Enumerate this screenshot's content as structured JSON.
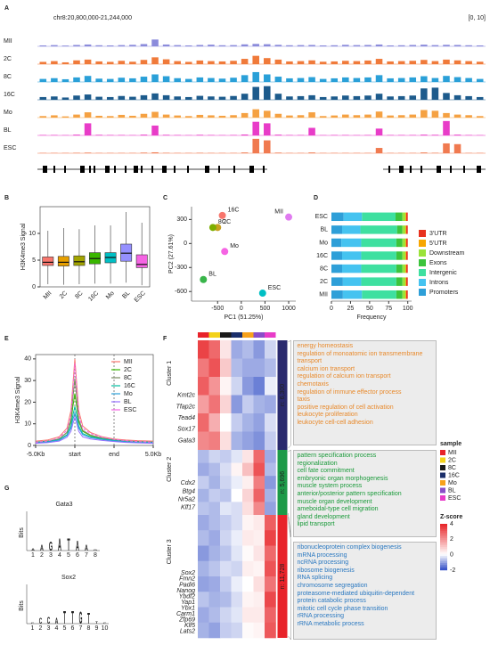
{
  "panel_labels": [
    "A",
    "B",
    "C",
    "D",
    "E",
    "F",
    "G"
  ],
  "tracks": {
    "region": "chr8:20,800,000-21,244,000",
    "range": "[0, 10]",
    "ylim": [
      0,
      10
    ],
    "items": [
      {
        "name": "MII",
        "color": "#8b8bdb",
        "values": [
          0.6,
          0.8,
          0.5,
          0.9,
          1.2,
          0.7,
          0.6,
          0.8,
          1.0,
          1.5,
          4.5,
          1.2,
          0.8,
          0.6,
          0.9,
          1.1,
          0.7,
          0.8,
          1.3,
          1.6,
          1.4,
          1.0,
          0.7,
          0.8,
          0.9,
          0.6,
          0.7,
          1.0,
          0.8,
          0.9,
          1.2,
          0.6,
          0.7,
          0.9,
          1.1,
          0.8,
          1.0,
          0.9,
          0.7,
          0.6
        ]
      },
      {
        "name": "2C",
        "color": "#f07a3a",
        "values": [
          1.5,
          2.0,
          1.2,
          2.5,
          3.0,
          1.8,
          1.5,
          2.2,
          1.6,
          2.8,
          4.5,
          3.2,
          2.0,
          1.5,
          2.4,
          2.0,
          1.8,
          2.2,
          3.5,
          5.5,
          4.0,
          3.0,
          1.8,
          2.0,
          2.5,
          1.6,
          1.8,
          2.2,
          2.0,
          2.4,
          3.5,
          1.8,
          2.0,
          2.2,
          2.8,
          2.0,
          3.0,
          2.5,
          2.0,
          1.6
        ]
      },
      {
        "name": "8C",
        "color": "#2aa0d8",
        "values": [
          2.0,
          2.5,
          1.8,
          3.0,
          4.0,
          2.2,
          2.0,
          2.8,
          2.4,
          3.5,
          5.0,
          3.8,
          2.5,
          2.0,
          3.0,
          2.6,
          2.2,
          2.8,
          4.5,
          6.5,
          5.0,
          3.5,
          2.4,
          2.6,
          3.2,
          2.0,
          2.4,
          3.0,
          2.6,
          3.0,
          4.5,
          2.4,
          2.6,
          3.0,
          3.8,
          2.6,
          4.0,
          3.2,
          2.6,
          2.0
        ]
      },
      {
        "name": "16C",
        "color": "#1d5b8c",
        "values": [
          1.8,
          2.2,
          1.5,
          2.8,
          3.5,
          2.0,
          1.8,
          2.5,
          2.0,
          3.0,
          4.2,
          3.0,
          2.2,
          1.8,
          2.6,
          2.2,
          2.0,
          2.5,
          4.0,
          8.5,
          9.0,
          4.0,
          2.2,
          2.4,
          3.0,
          1.8,
          2.2,
          2.8,
          2.4,
          2.8,
          4.0,
          2.2,
          2.4,
          2.8,
          7.5,
          8.0,
          4.5,
          3.0,
          2.4,
          1.8
        ]
      },
      {
        "name": "Mo",
        "color": "#f5a142",
        "values": [
          1.0,
          1.5,
          0.8,
          2.0,
          3.5,
          1.2,
          1.0,
          1.8,
          1.2,
          2.5,
          3.8,
          2.0,
          1.4,
          1.0,
          1.8,
          1.5,
          1.2,
          1.6,
          3.0,
          5.5,
          4.5,
          2.5,
          1.4,
          1.6,
          3.5,
          1.0,
          1.4,
          2.0,
          1.6,
          2.0,
          4.0,
          1.4,
          1.6,
          2.0,
          5.0,
          4.5,
          3.0,
          2.0,
          1.6,
          1.0
        ]
      },
      {
        "name": "BL",
        "color": "#e83cc8",
        "values": [
          0.3,
          0.3,
          0.2,
          0.5,
          8.0,
          0.4,
          0.3,
          0.3,
          0.2,
          0.5,
          6.5,
          0.4,
          0.3,
          0.2,
          0.4,
          0.3,
          0.2,
          0.3,
          0.6,
          9.0,
          8.0,
          0.5,
          0.3,
          0.3,
          5.0,
          0.2,
          0.3,
          0.3,
          0.2,
          0.3,
          4.5,
          0.3,
          0.3,
          0.3,
          0.5,
          0.4,
          9.5,
          0.5,
          0.3,
          0.2
        ]
      },
      {
        "name": "ESC",
        "color": "#f07a50",
        "values": [
          0.2,
          0.2,
          0.2,
          0.3,
          0.4,
          0.2,
          0.2,
          0.2,
          0.2,
          0.4,
          0.6,
          0.3,
          0.2,
          0.2,
          0.3,
          0.2,
          0.2,
          0.2,
          0.5,
          9.5,
          8.5,
          0.4,
          0.2,
          0.2,
          0.5,
          0.2,
          0.2,
          0.2,
          0.2,
          0.2,
          3.5,
          0.2,
          0.2,
          0.2,
          0.5,
          0.3,
          6.5,
          6.0,
          0.2,
          0.2
        ]
      }
    ]
  },
  "chart_data": [
    {
      "type": "box",
      "ylabel": "H3K4me3 Signal",
      "categories": [
        "MII",
        "2C",
        "8C",
        "16C",
        "Mo",
        "BL",
        "ESC"
      ],
      "colors": [
        "#f8766d",
        "#e69f00",
        "#a3a500",
        "#39b600",
        "#00bfc4",
        "#9590ff",
        "#f564e3"
      ],
      "min": [
        0.5,
        0.4,
        0.5,
        0.6,
        0.6,
        0.8,
        0.3
      ],
      "q1": [
        4.0,
        3.9,
        4.0,
        4.3,
        4.5,
        4.8,
        3.6
      ],
      "median": [
        4.6,
        4.6,
        4.7,
        5.3,
        5.5,
        6.3,
        4.2
      ],
      "q3": [
        5.6,
        5.7,
        5.8,
        6.4,
        6.4,
        8.0,
        6.0
      ],
      "max": [
        10.5,
        11,
        10.8,
        11.5,
        11.5,
        14,
        12
      ],
      "ylim": [
        0,
        15
      ],
      "yticks": [
        0,
        5,
        10
      ]
    },
    {
      "type": "scatter",
      "xlabel": "PC1 (51.25%)",
      "ylabel": "PC2 (27.61%)",
      "categories": [
        "MII",
        "16C",
        "2C",
        "8C",
        "Mo",
        "BL",
        "ESC"
      ],
      "x": [
        1000,
        -400,
        -500,
        -600,
        -350,
        -800,
        450
      ],
      "y": [
        330,
        350,
        200,
        200,
        -100,
        -450,
        -620
      ],
      "colors": [
        "#e07bf0",
        "#f8766d",
        "#c8a020",
        "#7cae00",
        "#f564e3",
        "#39b54a",
        "#00bfc4"
      ],
      "xlim": [
        -1050,
        1150
      ],
      "ylim": [
        -720,
        460
      ],
      "xticks": [
        -500,
        0,
        500,
        1000
      ],
      "yticks": [
        -600,
        -300,
        0,
        300
      ]
    },
    {
      "type": "bar",
      "stacked": true,
      "orientation": "horizontal",
      "xlabel": "Frequency",
      "categories": [
        "MII",
        "2C",
        "8C",
        "16C",
        "Mo",
        "BL",
        "ESC"
      ],
      "series": [
        {
          "name": "Promoters",
          "color": "#2e9fd8",
          "values": [
            15,
            15,
            14,
            14,
            13,
            14,
            16
          ]
        },
        {
          "name": "Introns",
          "color": "#45c3f0",
          "values": [
            25,
            24,
            25,
            25,
            26,
            24,
            24
          ]
        },
        {
          "name": "Intergenic",
          "color": "#3ee0a0",
          "values": [
            45,
            46,
            46,
            46,
            46,
            48,
            44
          ]
        },
        {
          "name": "Exons",
          "color": "#3cc43c",
          "values": [
            8,
            8,
            8,
            8,
            8,
            7,
            9
          ]
        },
        {
          "name": "Downstream",
          "color": "#9be33a",
          "values": [
            4,
            4,
            4,
            4,
            4,
            4,
            4
          ]
        },
        {
          "name": "5'UTR",
          "color": "#f7a600",
          "values": [
            1,
            1,
            1,
            1,
            1,
            1,
            1
          ]
        },
        {
          "name": "3'UTR",
          "color": "#e8321e",
          "values": [
            2,
            2,
            2,
            2,
            2,
            2,
            2
          ]
        }
      ],
      "xlim": [
        0,
        105
      ],
      "xticks": [
        0,
        25,
        50,
        75,
        100
      ]
    },
    {
      "type": "line",
      "ylabel": "H3K4me3 Signal",
      "x": [
        0,
        0.3,
        0.6,
        0.8,
        0.9,
        0.95,
        1,
        1.05,
        1.1,
        1.2,
        1.4,
        1.7,
        2,
        2.3,
        2.6,
        3
      ],
      "series": [
        {
          "name": "MII",
          "color": "#f8766d",
          "values": [
            2,
            2.5,
            4,
            8,
            16,
            28,
            40,
            28,
            16,
            9,
            6,
            4,
            3,
            2.5,
            2.2,
            2
          ]
        },
        {
          "name": "2C",
          "color": "#39b600",
          "values": [
            1.5,
            2,
            3,
            6,
            11,
            18,
            24,
            18,
            11,
            6.5,
            4.5,
            3.2,
            2.5,
            2,
            1.8,
            1.5
          ]
        },
        {
          "name": "8C",
          "color": "#7a8a60",
          "values": [
            1.5,
            2,
            3,
            6,
            12,
            22,
            31,
            22,
            12,
            7,
            4.8,
            3.4,
            2.6,
            2,
            1.8,
            1.5
          ]
        },
        {
          "name": "16C",
          "color": "#00bfa0",
          "values": [
            1.5,
            1.8,
            2.6,
            5,
            9,
            14,
            18,
            14,
            9,
            5.5,
            4,
            3,
            2.3,
            1.8,
            1.6,
            1.5
          ]
        },
        {
          "name": "Mo",
          "color": "#2aa0d8",
          "values": [
            1.2,
            1.6,
            2.4,
            4.5,
            8,
            12,
            15,
            12,
            8,
            5,
            3.6,
            2.7,
            2.1,
            1.7,
            1.4,
            1.2
          ]
        },
        {
          "name": "BL",
          "color": "#9570ff",
          "values": [
            1,
            1.3,
            2,
            3.8,
            6.5,
            10,
            13,
            10,
            6.5,
            4,
            3,
            2.3,
            1.8,
            1.4,
            1.2,
            1
          ]
        },
        {
          "name": "ESC",
          "color": "#f564e3",
          "line_style": "dashed",
          "values": [
            1.5,
            2,
            3.5,
            7,
            14,
            26,
            38,
            26,
            14,
            8,
            5.5,
            3.8,
            2.8,
            2.2,
            1.8,
            1.5
          ]
        }
      ],
      "xlim": [
        0,
        3
      ],
      "ylim": [
        0,
        42
      ],
      "xticks": [
        {
          "value": 0,
          "label": "-5.0Kb"
        },
        {
          "value": 1,
          "label": "start"
        },
        {
          "value": 2,
          "label": "end"
        },
        {
          "value": 3,
          "label": "5.0Kb"
        }
      ],
      "yticks": [
        0,
        10,
        20,
        30,
        40
      ],
      "marker_lines": [
        1,
        2
      ]
    }
  ],
  "heatmap": {
    "samples": [
      "MII",
      "2C",
      "8C",
      "16C",
      "Mo",
      "BL",
      "ESC"
    ],
    "sample_colors": [
      "#e8232a",
      "#f3d21a",
      "#1b1b1b",
      "#1b2f6b",
      "#f7a21b",
      "#8a4ec8",
      "#e83cc8"
    ],
    "sample_title": "sample",
    "zscore_title": "Z-score",
    "zlim": [
      -2,
      4
    ],
    "zticks": [
      4,
      2,
      0,
      -2
    ],
    "clusters": [
      {
        "name": "Cluster 1",
        "count": "n: 6,300",
        "color": "#2a2a6e",
        "text_color": "#e8892b",
        "gene_color": "#1f3a7a",
        "genes": [
          "Kmt2c",
          "Tfap2c",
          "Tead4",
          "Sox17",
          "Gata3"
        ],
        "terms": [
          "energy homeostasis",
          "regulation of monoatomic ion transmembrane transport",
          "calcium ion transport",
          "regulation of calcium ion transport",
          "chemotaxis",
          "regulation of immune effector process",
          "taxis",
          "positive regulation of cell activation",
          "leukocyte proliferation",
          "leukocyte cell-cell  adhesion"
        ],
        "rows": [
          [
            3.5,
            2.8,
            0.5,
            -1.0,
            -0.8,
            -1.2,
            -0.5
          ],
          [
            2.5,
            3.2,
            1.0,
            -0.8,
            -1.0,
            -1.0,
            -0.8
          ],
          [
            3.0,
            2.0,
            0.2,
            -0.5,
            -1.2,
            -1.5,
            -0.2
          ],
          [
            1.8,
            2.6,
            0.8,
            -1.2,
            -0.6,
            -0.9,
            -1.0
          ],
          [
            2.8,
            1.5,
            0.0,
            -0.6,
            -0.9,
            -1.1,
            -0.4
          ],
          [
            2.2,
            2.4,
            0.6,
            -0.9,
            -1.1,
            -1.3,
            -0.6
          ]
        ]
      },
      {
        "name": "Cluster 2",
        "count": "n: 5,696",
        "color": "#1d9a48",
        "text_color": "#1a9a3a",
        "gene_color": "#1a9a3a",
        "genes": [
          "Cdx2",
          "Btg4",
          "Nr5a2",
          "Klf17"
        ],
        "terms": [
          "pattern specification process",
          "regionalization",
          "cell fate commitment",
          "embryonic organ morphogenesis",
          "muscle system process",
          "anterior/posterior pattern specification",
          "muscle organ development",
          "ameboidal-type cell migration",
          "gland development",
          "lipid transport"
        ],
        "rows": [
          [
            -0.8,
            -0.5,
            -0.6,
            -0.3,
            0.5,
            2.8,
            -1.0
          ],
          [
            -1.0,
            -0.8,
            -0.4,
            0.2,
            1.2,
            3.2,
            -0.8
          ],
          [
            -0.6,
            -0.9,
            -0.5,
            -0.2,
            0.3,
            2.4,
            -1.2
          ],
          [
            -0.9,
            -0.6,
            -0.7,
            0.0,
            0.8,
            2.9,
            -0.9
          ],
          [
            -0.7,
            -0.8,
            -0.3,
            -0.4,
            0.6,
            2.2,
            -1.1
          ]
        ]
      },
      {
        "name": "Cluster 3",
        "count": "n: 11,728",
        "color": "#e8232a",
        "text_color": "#2a78c0",
        "gene_color": "#e8232a",
        "genes": [
          "Sox2",
          "Fmn2",
          "Padi6",
          "Nanog",
          "Ybdf2",
          "Yap1",
          "Ybx1",
          "Carm1",
          "Zfp69",
          "Klf5",
          "Lats2"
        ],
        "terms": [
          "ribonucleoprotein complex biogenesis",
          "mRNA processing",
          "ncRNA processing",
          "ribosome biogenesis",
          "RNA splicing",
          "chromosome segregation",
          "proteasome-mediated  ubiquitin-dependent  protein catabolic process",
          "mitotic cell cycle phase transition",
          "rRNA processing",
          "rRNA metabolic process"
        ],
        "rows": [
          [
            -1.0,
            -0.8,
            -0.6,
            -0.4,
            0.2,
            0.4,
            3.0
          ],
          [
            -0.8,
            -1.0,
            -0.5,
            -0.2,
            0.4,
            0.3,
            3.5
          ],
          [
            -1.2,
            -0.9,
            -0.7,
            -0.3,
            0.1,
            0.5,
            2.8
          ],
          [
            -0.9,
            -0.7,
            -0.4,
            -0.5,
            0.3,
            0.2,
            3.2
          ],
          [
            -1.1,
            -1.0,
            -0.6,
            -0.2,
            0.0,
            0.6,
            2.6
          ],
          [
            -0.7,
            -0.9,
            -0.8,
            -0.4,
            0.2,
            0.3,
            3.4
          ],
          [
            -1.0,
            -0.8,
            -0.5,
            -0.3,
            0.4,
            0.4,
            2.9
          ],
          [
            -0.9,
            -1.1,
            -0.6,
            -0.5,
            0.1,
            0.2,
            3.1
          ]
        ]
      }
    ]
  },
  "motifs": [
    {
      "name": "Gata3",
      "ylabel": "Bits",
      "ylim": [
        0,
        2
      ],
      "positions": [
        "1",
        "2",
        "3",
        "4",
        "5",
        "6",
        "7",
        "8"
      ],
      "letters": [
        {
          "letter": "A",
          "bits": 0.3
        },
        {
          "letter": "A",
          "bits": 0.9
        },
        {
          "letter": "G",
          "bits": 1.4
        },
        {
          "letter": "A",
          "bits": 1.8
        },
        {
          "letter": "T",
          "bits": 1.8
        },
        {
          "letter": "A",
          "bits": 1.5
        },
        {
          "letter": "A",
          "bits": 0.9
        },
        {
          "letter": "G",
          "bits": 0.2
        }
      ]
    },
    {
      "name": "Sox2",
      "ylabel": "Bits",
      "ylim": [
        0,
        2
      ],
      "positions": [
        "1",
        "2",
        "3",
        "4",
        "5",
        "6",
        "7",
        "8",
        "9",
        "10"
      ],
      "letters": [
        {
          "letter": "C",
          "bits": 0.2
        },
        {
          "letter": "C",
          "bits": 0.9
        },
        {
          "letter": "C",
          "bits": 1.0
        },
        {
          "letter": "A",
          "bits": 0.9
        },
        {
          "letter": "T",
          "bits": 1.9
        },
        {
          "letter": "T",
          "bits": 1.9
        },
        {
          "letter": "G",
          "bits": 1.8
        },
        {
          "letter": "T",
          "bits": 1.6
        },
        {
          "letter": "T",
          "bits": 0.3
        },
        {
          "letter": "C",
          "bits": 0.2
        }
      ]
    }
  ]
}
